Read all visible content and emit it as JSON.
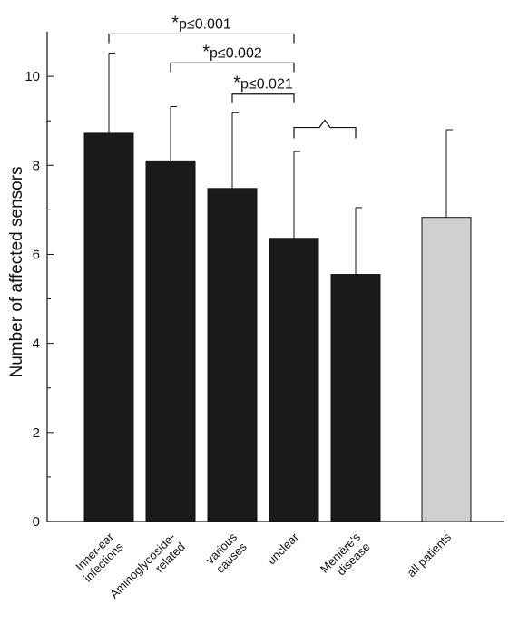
{
  "chart_data": {
    "type": "bar",
    "title": "",
    "xlabel": "",
    "ylabel": "Number of affected sensors",
    "ylim": [
      0,
      11
    ],
    "yticks": [
      0,
      2,
      4,
      6,
      8,
      10
    ],
    "grid": false,
    "legend": "none",
    "bar_color": "#1a1a1a",
    "highlight_color": "#d0d0d0",
    "categories": [
      {
        "lines": [
          "Inner-ear",
          "infections"
        ],
        "value": 8.72,
        "error": 1.8,
        "highlight": false
      },
      {
        "lines": [
          "Aminoglycoside-",
          "related"
        ],
        "value": 8.1,
        "error": 1.22,
        "highlight": false
      },
      {
        "lines": [
          "various",
          "causes"
        ],
        "value": 7.48,
        "error": 1.7,
        "highlight": false
      },
      {
        "lines": [
          "unclear"
        ],
        "value": 6.36,
        "error": 1.95,
        "highlight": false
      },
      {
        "lines": [
          "Menière's",
          "disease"
        ],
        "value": 5.55,
        "error": 1.5,
        "highlight": false
      },
      {
        "lines": [
          "all patients"
        ],
        "value": 6.83,
        "error": 1.97,
        "highlight": true
      }
    ],
    "annotations": [
      {
        "from": 0,
        "to": 3,
        "level": 10.95,
        "star": "*",
        "text": "p≤0.001"
      },
      {
        "from": 1,
        "to": 3,
        "level": 10.3,
        "star": "*",
        "text": "p≤0.002"
      },
      {
        "from": 2,
        "to": 3,
        "level": 9.6,
        "star": "*",
        "text": "p≤0.021"
      },
      {
        "from": 3,
        "to": 4,
        "level": 8.85,
        "star": "",
        "text": "",
        "style": "peak"
      }
    ]
  }
}
